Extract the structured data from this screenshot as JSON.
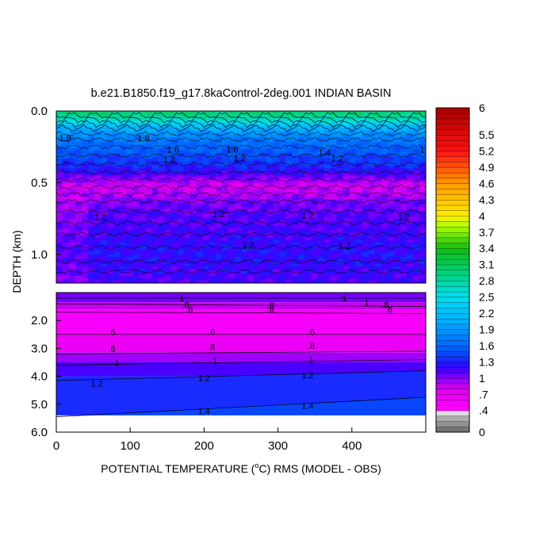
{
  "chart_data": {
    "type": "heatmap",
    "title": "b.e21.B1850.f19_g17.8kaControl-2deg.001 INDIAN BASIN",
    "xlabel_pre": "POTENTIAL TEMPERATURE (",
    "xlabel_sup": "o",
    "xlabel_post": "C) RMS (MODEL - OBS)",
    "ylabel": "DEPTH (km)",
    "xlim": [
      0,
      500
    ],
    "x_ticks": [
      0,
      100,
      200,
      300,
      400
    ],
    "upper_panel": {
      "ylim": [
        0.0,
        1.2
      ],
      "y_ticks": [
        {
          "value": 0.0,
          "label": "0.0"
        },
        {
          "value": 0.5,
          "label": "0.5"
        },
        {
          "value": 1.0,
          "label": "1.0"
        }
      ],
      "depth_profile": [
        {
          "depth": 0.0,
          "value": 3.0
        },
        {
          "depth": 0.05,
          "value": 2.8
        },
        {
          "depth": 0.1,
          "value": 2.2
        },
        {
          "depth": 0.15,
          "value": 1.9
        },
        {
          "depth": 0.2,
          "value": 1.7
        },
        {
          "depth": 0.25,
          "value": 1.6
        },
        {
          "depth": 0.3,
          "value": 1.5
        },
        {
          "depth": 0.35,
          "value": 1.4
        },
        {
          "depth": 0.4,
          "value": 1.3
        },
        {
          "depth": 0.45,
          "value": 1.1
        },
        {
          "depth": 0.5,
          "value": 0.9
        },
        {
          "depth": 0.55,
          "value": 0.9
        },
        {
          "depth": 0.6,
          "value": 1.0
        },
        {
          "depth": 0.65,
          "value": 1.05
        },
        {
          "depth": 0.7,
          "value": 1.1
        },
        {
          "depth": 0.8,
          "value": 1.15
        },
        {
          "depth": 0.9,
          "value": 1.2
        },
        {
          "depth": 1.0,
          "value": 1.25
        },
        {
          "depth": 1.1,
          "value": 1.2
        },
        {
          "depth": 1.2,
          "value": 1.15
        }
      ],
      "contour_labels": [
        {
          "x": 12,
          "depth": 0.21,
          "label": "1.8"
        },
        {
          "x": 118,
          "depth": 0.21,
          "label": "1.8"
        },
        {
          "x": 158,
          "depth": 0.29,
          "label": "1.6"
        },
        {
          "x": 153,
          "depth": 0.36,
          "label": "1.2"
        },
        {
          "x": 238,
          "depth": 0.29,
          "label": "1.6"
        },
        {
          "x": 248,
          "depth": 0.35,
          "label": "1.2"
        },
        {
          "x": 363,
          "depth": 0.31,
          "label": "1.4"
        },
        {
          "x": 380,
          "depth": 0.35,
          "label": "1.2"
        },
        {
          "x": 500,
          "depth": 0.29,
          "label": "1.6"
        },
        {
          "x": 60,
          "depth": 0.76,
          "label": "1.2"
        },
        {
          "x": 220,
          "depth": 0.74,
          "label": "1.2"
        },
        {
          "x": 340,
          "depth": 0.75,
          "label": "1.2"
        },
        {
          "x": 470,
          "depth": 0.76,
          "label": "1.2"
        },
        {
          "x": 260,
          "depth": 0.96,
          "label": "1.2"
        },
        {
          "x": 390,
          "depth": 0.96,
          "label": "1.2"
        }
      ]
    },
    "lower_panel": {
      "ylim": [
        1.0,
        6.0
      ],
      "y_ticks": [
        {
          "value": 2.0,
          "label": "2.0"
        },
        {
          "value": 3.0,
          "label": "3.0"
        },
        {
          "value": 4.0,
          "label": "4.0"
        },
        {
          "value": 5.0,
          "label": "5.0"
        },
        {
          "value": 6.0,
          "label": "6.0"
        }
      ],
      "bottom_depth": 5.4,
      "contour_lines": [
        {
          "level": 1.0,
          "depth_start": 1.2,
          "depth_end": 1.2
        },
        {
          "level": 0.8,
          "depth_start": 1.4,
          "depth_end": 1.5
        },
        {
          "level": 0.6,
          "depth_start": 1.7,
          "depth_end": 1.75
        },
        {
          "level": 0.6,
          "depth_start": 2.5,
          "depth_end": 2.5
        },
        {
          "level": 0.8,
          "depth_start": 3.2,
          "depth_end": 3.1
        },
        {
          "level": 1.0,
          "depth_start": 3.6,
          "depth_end": 3.4
        },
        {
          "level": 1.2,
          "depth_start": 4.15,
          "depth_end": 3.8
        },
        {
          "level": 1.4,
          "depth_start": 5.45,
          "depth_end": 4.75
        }
      ],
      "contour_labels": [
        {
          "x": 170,
          "depth": 1.2,
          "label": "1"
        },
        {
          "x": 390,
          "depth": 1.2,
          "label": "1"
        },
        {
          "x": 420,
          "depth": 1.35,
          "label": "1"
        },
        {
          "x": 175,
          "depth": 1.42,
          "label": ".8"
        },
        {
          "x": 290,
          "depth": 1.45,
          "label": ".8"
        },
        {
          "x": 445,
          "depth": 1.42,
          "label": ".8"
        },
        {
          "x": 180,
          "depth": 1.6,
          "label": ".6"
        },
        {
          "x": 290,
          "depth": 1.6,
          "label": ".6"
        },
        {
          "x": 450,
          "depth": 1.6,
          "label": ".6"
        },
        {
          "x": 75,
          "depth": 2.4,
          "label": ".6"
        },
        {
          "x": 210,
          "depth": 2.4,
          "label": ".6"
        },
        {
          "x": 345,
          "depth": 2.4,
          "label": ".6"
        },
        {
          "x": 75,
          "depth": 3.0,
          "label": ".8"
        },
        {
          "x": 210,
          "depth": 2.95,
          "label": ".8"
        },
        {
          "x": 345,
          "depth": 2.9,
          "label": ".8"
        },
        {
          "x": 82,
          "depth": 3.5,
          "label": "1"
        },
        {
          "x": 215,
          "depth": 3.45,
          "label": "1"
        },
        {
          "x": 345,
          "depth": 3.4,
          "label": "1"
        },
        {
          "x": 55,
          "depth": 4.25,
          "label": "1.2"
        },
        {
          "x": 200,
          "depth": 4.05,
          "label": "1.2"
        },
        {
          "x": 340,
          "depth": 3.95,
          "label": "1.2"
        },
        {
          "x": 200,
          "depth": 5.25,
          "label": "1.4"
        },
        {
          "x": 340,
          "depth": 5.05,
          "label": "1.4"
        }
      ]
    },
    "colorbar": {
      "min": 0,
      "max": 6,
      "step": 0.1,
      "tick_values": [
        6,
        5.5,
        5.2,
        4.9,
        4.6,
        4.3,
        4,
        3.7,
        3.4,
        3.1,
        2.8,
        2.5,
        2.2,
        1.9,
        1.6,
        1.3,
        1,
        0.7,
        0.4,
        0
      ],
      "tick_labels": [
        "6",
        "5.5",
        "5.2",
        "4.9",
        "4.6",
        "4.3",
        "4",
        "3.7",
        "3.4",
        "3.1",
        "2.8",
        "2.5",
        "2.2",
        "1.9",
        "1.6",
        "1.3",
        "1",
        ".7",
        ".4",
        "0"
      ],
      "color_stops": [
        {
          "value": 0.0,
          "color": "#666666"
        },
        {
          "value": 0.3,
          "color": "#bbbbbb"
        },
        {
          "value": 0.4,
          "color": "#ffffff"
        },
        {
          "value": 0.45,
          "color": "#ff00ff"
        },
        {
          "value": 0.8,
          "color": "#dd00ee"
        },
        {
          "value": 1.0,
          "color": "#8a00ff"
        },
        {
          "value": 1.2,
          "color": "#3300ff"
        },
        {
          "value": 1.5,
          "color": "#0055ff"
        },
        {
          "value": 2.0,
          "color": "#00a8ff"
        },
        {
          "value": 2.5,
          "color": "#00e0f0"
        },
        {
          "value": 3.0,
          "color": "#00d070"
        },
        {
          "value": 3.4,
          "color": "#11bb11"
        },
        {
          "value": 3.8,
          "color": "#aaff00"
        },
        {
          "value": 4.0,
          "color": "#ffee00"
        },
        {
          "value": 4.6,
          "color": "#ff9900"
        },
        {
          "value": 5.2,
          "color": "#ff1111"
        },
        {
          "value": 6.0,
          "color": "#aa0000"
        }
      ]
    }
  }
}
